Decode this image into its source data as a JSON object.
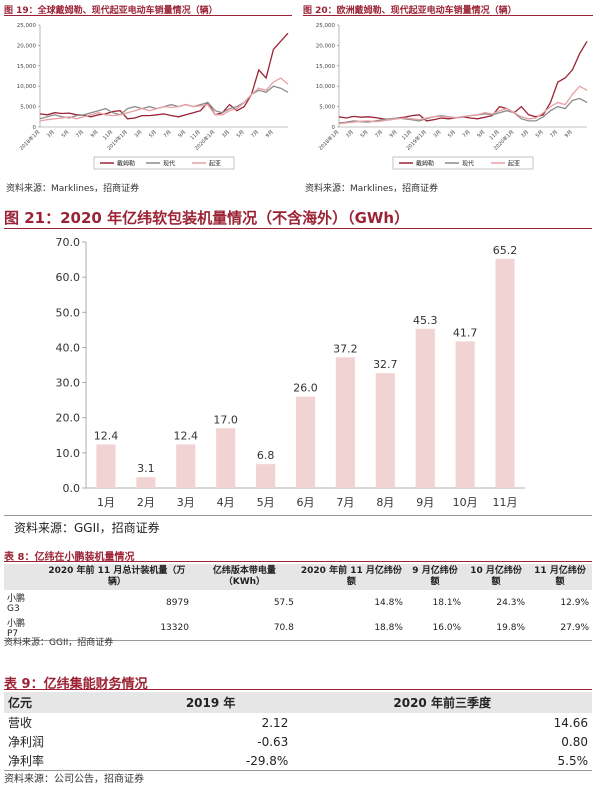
{
  "chart_data": [
    {
      "type": "line",
      "title": "图 19：全球戴姆勒、现代起亚电动车销量情况（辆）",
      "categories": [
        "2018年1月",
        null,
        "3月",
        null,
        "5月",
        null,
        "7月",
        null,
        "9月",
        null,
        "11月",
        null,
        "2019年1月",
        null,
        "3月",
        null,
        "5月",
        null,
        "7月",
        null,
        "9月",
        null,
        "11月",
        null,
        "2020年1月",
        null,
        "3月",
        null,
        "5月",
        null,
        "7月",
        null,
        "9月",
        null,
        null
      ],
      "series": [
        {
          "name": "戴姆勒",
          "color": "#9b2335",
          "values": [
            3200,
            3000,
            3500,
            3300,
            3400,
            3000,
            2900,
            2500,
            3000,
            3200,
            3800,
            4000,
            2000,
            2200,
            2800,
            2800,
            3000,
            3200,
            2800,
            2500,
            3000,
            3500,
            4000,
            6000,
            3000,
            3500,
            5500,
            4000,
            5000,
            8000,
            14000,
            12000,
            19000,
            21000,
            23000
          ]
        },
        {
          "name": "现代",
          "color": "#8c8c8c",
          "values": [
            2000,
            2500,
            3000,
            2500,
            2200,
            2800,
            3000,
            3500,
            4000,
            4500,
            3500,
            3000,
            4500,
            5000,
            4500,
            5000,
            4500,
            5000,
            5500,
            5000,
            5500,
            5000,
            5500,
            6000,
            4000,
            3500,
            4500,
            5000,
            6000,
            8000,
            9000,
            8500,
            10000,
            9500,
            8500
          ]
        },
        {
          "name": "起亚",
          "color": "#e8a0a4",
          "values": [
            1500,
            1800,
            2000,
            2200,
            2500,
            2000,
            2500,
            3000,
            3500,
            3000,
            2800,
            3000,
            3500,
            4000,
            4500,
            4000,
            4500,
            5000,
            4800,
            5000,
            5500,
            5000,
            5200,
            5500,
            3000,
            3000,
            4000,
            4500,
            6000,
            8000,
            9500,
            9000,
            11000,
            12000,
            10500
          ]
        }
      ],
      "ylim": [
        0,
        25000
      ],
      "yticks": [
        0,
        {
          "value": 5000,
          "label": "5,000"
        },
        {
          "value": 10000,
          "label": "10,000"
        },
        {
          "value": 15000,
          "label": "15,000"
        },
        {
          "value": 20000,
          "label": "20,000"
        },
        {
          "value": 25000,
          "label": "25,000"
        }
      ],
      "source": "资料来源：Marklines，招商证券"
    },
    {
      "type": "line",
      "title": "图 20：欧洲戴姆勒、现代起亚电动车销量情况（辆）",
      "categories": [
        "2018年1月",
        null,
        "3月",
        null,
        "5月",
        null,
        "7月",
        null,
        "9月",
        null,
        "11月",
        null,
        "2019年1月",
        null,
        "3月",
        null,
        "5月",
        null,
        "7月",
        null,
        "9月",
        null,
        "11月",
        null,
        "2020年1月",
        null,
        "3月",
        null,
        "5月",
        null,
        "7月",
        null,
        "9月",
        null,
        null
      ],
      "series": [
        {
          "name": "戴姆勒",
          "color": "#9b2335",
          "values": [
            2500,
            2200,
            2600,
            2400,
            2500,
            2300,
            2000,
            1800,
            2200,
            2400,
            2800,
            3000,
            1500,
            1800,
            2200,
            2000,
            2200,
            2500,
            2200,
            2000,
            2400,
            2800,
            5000,
            4500,
            3500,
            5000,
            3000,
            2500,
            3000,
            6000,
            11000,
            12000,
            14000,
            18000,
            21000
          ]
        },
        {
          "name": "现代",
          "color": "#8c8c8c",
          "values": [
            1000,
            1200,
            1500,
            1300,
            1200,
            1500,
            1800,
            2000,
            2200,
            2000,
            1800,
            1500,
            2000,
            2500,
            2800,
            2500,
            2300,
            2500,
            2800,
            3000,
            3200,
            3000,
            3500,
            4000,
            3500,
            2000,
            1500,
            1500,
            2500,
            4000,
            5000,
            4500,
            6500,
            7000,
            6000
          ]
        },
        {
          "name": "起亚",
          "color": "#e8a0a4",
          "values": [
            800,
            1000,
            1200,
            1400,
            1500,
            1300,
            1500,
            1800,
            2000,
            2200,
            2000,
            1800,
            2200,
            2500,
            2600,
            2400,
            2200,
            2600,
            2800,
            3000,
            3500,
            3200,
            4000,
            4500,
            3500,
            2500,
            2000,
            2200,
            3500,
            5000,
            6000,
            5500,
            8000,
            10000,
            9000
          ]
        }
      ],
      "ylim": [
        0,
        25000
      ],
      "yticks": [
        0,
        {
          "value": 5000,
          "label": "5,000"
        },
        {
          "value": 10000,
          "label": "10,000"
        },
        {
          "value": 15000,
          "label": "15,000"
        },
        {
          "value": 20000,
          "label": "20,000"
        },
        {
          "value": 25000,
          "label": "25,000"
        }
      ],
      "source": "资料来源：Marklines，招商证券"
    },
    {
      "type": "bar",
      "title": "图 21：2020 年亿纬软包装机量情况（不含海外）（GWh）",
      "categories": [
        "1月",
        "2月",
        "3月",
        "4月",
        "5月",
        "6月",
        "7月",
        "8月",
        "9月",
        "10月",
        "11月"
      ],
      "values": [
        12.4,
        3.1,
        12.4,
        17.0,
        6.8,
        26.0,
        37.2,
        32.7,
        45.3,
        41.7,
        65.2
      ],
      "value_labels": [
        "12.4",
        "3.1",
        "12.4",
        "17.0",
        "6.8",
        "26.0",
        "37.2",
        "32.7",
        "45.3",
        "41.7",
        "65.2"
      ],
      "color": "#f2d3d3",
      "ylim": [
        0,
        70
      ],
      "yticks": [
        {
          "value": 0,
          "label": "0.0"
        },
        {
          "value": 10,
          "label": "10.0"
        },
        {
          "value": 20,
          "label": "20.0"
        },
        {
          "value": 30,
          "label": "30.0"
        },
        {
          "value": 40,
          "label": "40.0"
        },
        {
          "value": 50,
          "label": "50.0"
        },
        {
          "value": 60,
          "label": "60.0"
        },
        {
          "value": 70,
          "label": "70.0"
        }
      ],
      "source": "资料来源：GGII，招商证券"
    }
  ],
  "tables": [
    {
      "title": "表 8：亿纬在小鹏装机量情况",
      "header": [
        "2020 年前 11 月总计装机量（万辆）",
        "亿纬版本带电量（KWh）",
        "2020 年前 11 月亿纬份额",
        "9 月亿纬份额",
        "10 月亿纬份额",
        "11 月亿纬份额"
      ],
      "rows": [
        [
          "小鹏 G3",
          "8979",
          "57.5",
          "14.8%",
          "18.1%",
          "24.3%",
          "12.9%"
        ],
        [
          "小鹏 P7",
          "13320",
          "70.8",
          "18.8%",
          "16.0%",
          "19.8%",
          "27.9%"
        ]
      ],
      "source": "资料来源：GGII，招商证券"
    },
    {
      "title": "表 9：亿纬集能财务情况",
      "header": [
        "亿元",
        "2019 年",
        "2020 年前三季度"
      ],
      "rows": [
        [
          "营收",
          "2.12",
          "14.66"
        ],
        [
          "净利润",
          "-0.63",
          "0.80"
        ],
        [
          "净利率",
          "-29.8%",
          "5.5%"
        ]
      ],
      "source": "资料来源：公司公告，招商证券"
    }
  ]
}
